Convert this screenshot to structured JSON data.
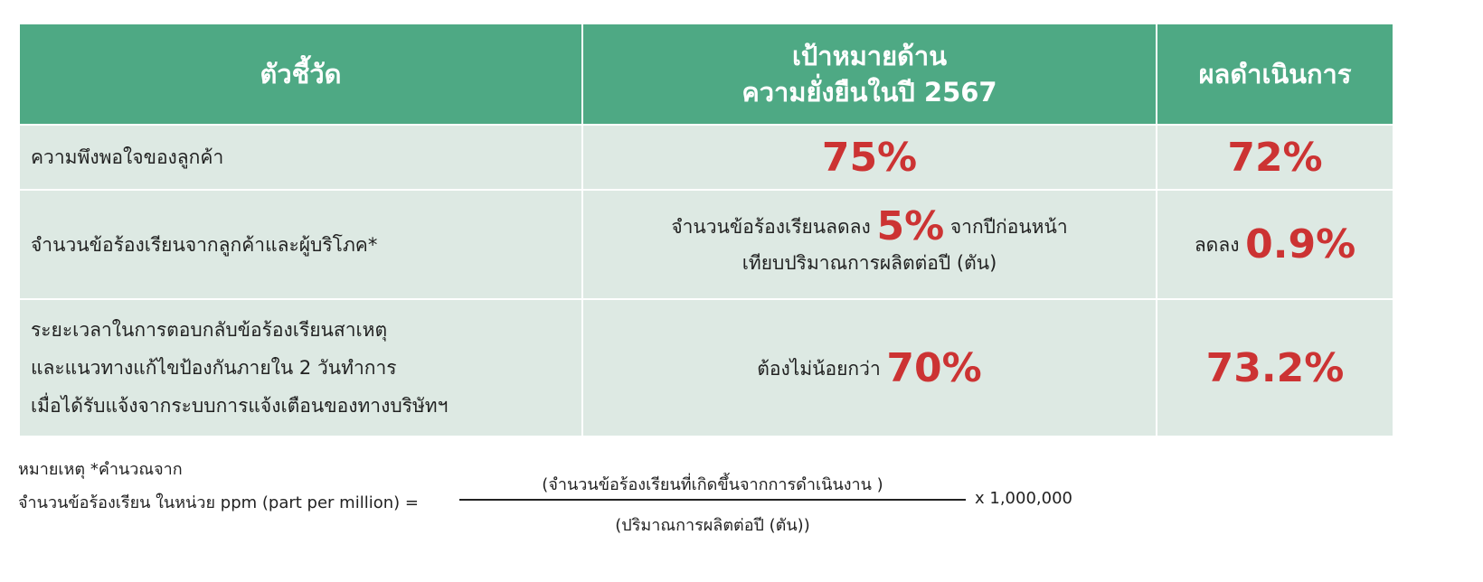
{
  "table": {
    "header": [
      [
        "ตัวชี้วัด"
      ],
      [
        "เป้าหมายด้าน",
        "ความยั่งยืนในปี 2567"
      ],
      [
        "ผลดำเนินการ"
      ]
    ],
    "rows": [
      {
        "indicator": [
          "ความพึงพอใจของลูกค้า"
        ],
        "target": {
          "value": "75%"
        },
        "result": {
          "value": "72%"
        }
      },
      {
        "indicator": [
          "จำนวนข้อร้องเรียนจากลูกค้าและผู้บริโภค*"
        ],
        "target": {
          "before": "จำนวนข้อร้องเรียนลดลง",
          "value": "5%",
          "after": "จากปีก่อนหน้า",
          "note": "เทียบปริมาณการผลิตต่อปี (ตัน)"
        },
        "result": {
          "before": "ลดลง",
          "value": "0.9%"
        }
      },
      {
        "indicator": [
          "ระยะเวลาในการตอบกลับข้อร้องเรียนสาเหตุ",
          "และแนวทางแก้ไขป้องกันภายใน 2 วันทำการ",
          "เมื่อได้รับแจ้งจากระบบการแจ้งเตือนของทางบริษัทฯ"
        ],
        "target": {
          "before": "ต้องไม่น้อยกว่า",
          "value": "70%"
        },
        "result": {
          "value": "73.2%"
        }
      }
    ]
  },
  "footnote": {
    "title": "หมายเหตุ *คำนวณจาก",
    "lhs": "จำนวนข้อร้องเรียน ในหน่วย ppm (part per million) =",
    "numerator": "(จำนวนข้อร้องเรียนที่เกิดขึ้นจากการดำเนินงาน )",
    "denominator": "(ปริมาณการผลิตต่อปี (ตัน))",
    "multiplier": "x 1,000,000"
  }
}
